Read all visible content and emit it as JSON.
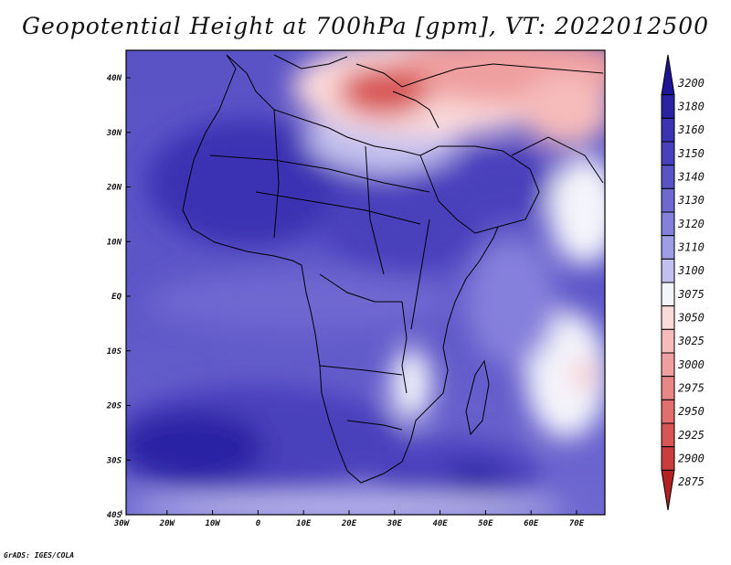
{
  "title": "Geopotential Height at 700hPa [gpm], VT: 2022012500",
  "footer": "GrADS: IGES/COLA",
  "lat_labels": [
    "40N",
    "30N",
    "20N",
    "10N",
    "EQ",
    "10S",
    "20S",
    "30S",
    "40S"
  ],
  "lon_labels": [
    "30W",
    "20W",
    "10W",
    "0",
    "10E",
    "20E",
    "30E",
    "40E",
    "50E",
    "60E",
    "70E"
  ],
  "colorbar": {
    "levels": [
      "3200",
      "3180",
      "3160",
      "3150",
      "3140",
      "3130",
      "3120",
      "3110",
      "3100",
      "3075",
      "3050",
      "3025",
      "3000",
      "2975",
      "2950",
      "2925",
      "2900",
      "2875"
    ],
    "colors": [
      "#1e1496",
      "#2a23a4",
      "#3a33b3",
      "#4840bc",
      "#5a53c6",
      "#6e68d0",
      "#8580db",
      "#a09ce5",
      "#c2c0ef",
      "#f4f4fb",
      "#fbdada",
      "#f6bcbc",
      "#ef9f9f",
      "#e98686",
      "#e26e6e",
      "#d85555",
      "#cb3d3d",
      "#b22222"
    ]
  }
}
